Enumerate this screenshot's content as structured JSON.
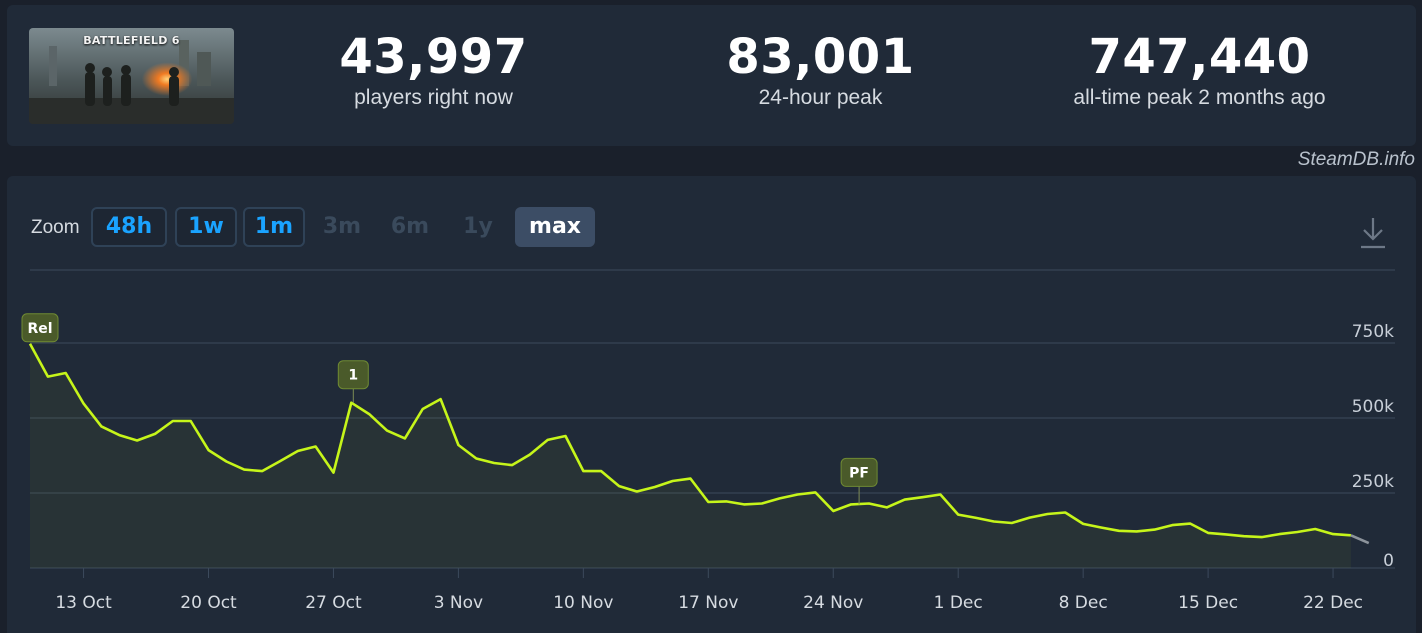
{
  "game": {
    "title": "BATTLEFIELD 6"
  },
  "stats": {
    "current": {
      "value": "43,997",
      "label": "players right now"
    },
    "peak_24h": {
      "value": "83,001",
      "label": "24-hour peak"
    },
    "all_time": {
      "value": "747,440",
      "label": "all-time peak 2 months ago"
    }
  },
  "site": {
    "credit": "SteamDB.info"
  },
  "zoom": {
    "label": "Zoom",
    "buttons": [
      {
        "label": "48h",
        "state": "enabled"
      },
      {
        "label": "1w",
        "state": "enabled"
      },
      {
        "label": "1m",
        "state": "enabled"
      },
      {
        "label": "3m",
        "state": "disabled"
      },
      {
        "label": "6m",
        "state": "disabled"
      },
      {
        "label": "1y",
        "state": "disabled"
      },
      {
        "label": "max",
        "state": "active"
      }
    ]
  },
  "colors": {
    "line": "#c6f51a",
    "grid": "#3c4a5c",
    "flag_bg": "#4a5a2a",
    "flag_border": "#6f8a33",
    "accent": "#1aa3ff"
  },
  "chart_data": {
    "type": "line",
    "title": "",
    "xlabel": "",
    "ylabel": "",
    "x_ticks": [
      "13 Oct",
      "20 Oct",
      "27 Oct",
      "3 Nov",
      "10 Nov",
      "17 Nov",
      "24 Nov",
      "1 Dec",
      "8 Dec",
      "15 Dec",
      "22 Dec"
    ],
    "y_ticks": [
      {
        "value": 750000,
        "label": "750k"
      },
      {
        "value": 500000,
        "label": "500k"
      },
      {
        "value": 250000,
        "label": "250k"
      },
      {
        "value": 0,
        "label": "0"
      }
    ],
    "ylim": [
      0,
      750000
    ],
    "grid": true,
    "series": [
      {
        "x": [
          "2025-10-10",
          "2025-10-11",
          "2025-10-12",
          "2025-10-13",
          "2025-10-14",
          "2025-10-15",
          "2025-10-16",
          "2025-10-17",
          "2025-10-18",
          "2025-10-19",
          "2025-10-20",
          "2025-10-21",
          "2025-10-22",
          "2025-10-23",
          "2025-10-24",
          "2025-10-25",
          "2025-10-26",
          "2025-10-27",
          "2025-10-28",
          "2025-10-29",
          "2025-10-30",
          "2025-10-31",
          "2025-11-01",
          "2025-11-02",
          "2025-11-03",
          "2025-11-04",
          "2025-11-05",
          "2025-11-06",
          "2025-11-07",
          "2025-11-08",
          "2025-11-09",
          "2025-11-10",
          "2025-11-11",
          "2025-11-12",
          "2025-11-13",
          "2025-11-14",
          "2025-11-15",
          "2025-11-16",
          "2025-11-17",
          "2025-11-18",
          "2025-11-19",
          "2025-11-20",
          "2025-11-21",
          "2025-11-22",
          "2025-11-23",
          "2025-11-24",
          "2025-11-25",
          "2025-11-26",
          "2025-11-27",
          "2025-11-28",
          "2025-11-29",
          "2025-11-30",
          "2025-12-01",
          "2025-12-02",
          "2025-12-03",
          "2025-12-04",
          "2025-12-05",
          "2025-12-06",
          "2025-12-07",
          "2025-12-08",
          "2025-12-09",
          "2025-12-10",
          "2025-12-11",
          "2025-12-12",
          "2025-12-13",
          "2025-12-14",
          "2025-12-15",
          "2025-12-16",
          "2025-12-17",
          "2025-12-18",
          "2025-12-19",
          "2025-12-20",
          "2025-12-21",
          "2025-12-22",
          "2025-12-23",
          "2025-12-24"
        ],
        "values": [
          747440,
          638000,
          650000,
          548000,
          472000,
          443000,
          425000,
          447000,
          490000,
          490000,
          393000,
          355000,
          328000,
          323000,
          356000,
          390000,
          405000,
          318000,
          551000,
          513000,
          458000,
          432000,
          530000,
          563000,
          410000,
          365000,
          350000,
          343000,
          378000,
          427000,
          440000,
          323000,
          323000,
          273000,
          255000,
          270000,
          290000,
          298000,
          220000,
          222000,
          212000,
          215000,
          232000,
          245000,
          252000,
          190000,
          212000,
          215000,
          202000,
          228000,
          236000,
          245000,
          178000,
          167000,
          155000,
          150000,
          168000,
          180000,
          185000,
          147000,
          135000,
          124000,
          122000,
          128000,
          143000,
          148000,
          117000,
          112000,
          106000,
          103000,
          113000,
          120000,
          130000,
          113000,
          109000,
          83000
        ]
      }
    ],
    "annotations": [
      {
        "label": "Rel",
        "x": "2025-10-10"
      },
      {
        "label": "1",
        "x": "2025-10-28"
      },
      {
        "label": "PF",
        "x": "2025-11-25"
      }
    ]
  }
}
